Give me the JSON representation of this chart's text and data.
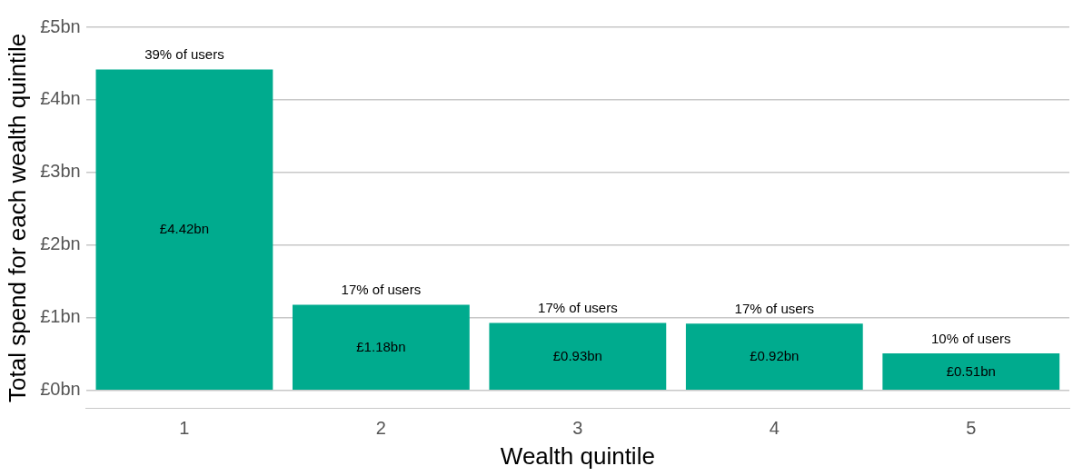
{
  "chart_data": {
    "type": "bar",
    "xlabel": "Wealth quintile",
    "ylabel": "Total spend for each wealth quintile",
    "categories": [
      "1",
      "2",
      "3",
      "4",
      "5"
    ],
    "values": [
      4.42,
      1.18,
      0.93,
      0.92,
      0.51
    ],
    "value_labels": [
      "£4.42bn",
      "£1.18bn",
      "£0.93bn",
      "£0.92bn",
      "£0.51bn"
    ],
    "color": "#00ab8e",
    "ylim": [
      -0.25,
      5
    ],
    "yticks": [
      {
        "value": 0,
        "label": "£0bn"
      },
      {
        "value": 1,
        "label": "£1bn"
      },
      {
        "value": 2,
        "label": "£2bn"
      },
      {
        "value": 3,
        "label": "£3bn"
      },
      {
        "value": 4,
        "label": "£4bn"
      },
      {
        "value": 5,
        "label": "£5bn"
      }
    ],
    "grid": "y",
    "legend": false,
    "annotations": [
      {
        "text": "39% of users",
        "x": "1",
        "y": 4.42
      },
      {
        "text": "17% of users",
        "x": "2",
        "y": 1.18
      },
      {
        "text": "17% of users",
        "x": "3",
        "y": 0.93
      },
      {
        "text": "17% of users",
        "x": "4",
        "y": 0.92
      },
      {
        "text": "10% of users",
        "x": "5",
        "y": 0.51
      }
    ]
  }
}
